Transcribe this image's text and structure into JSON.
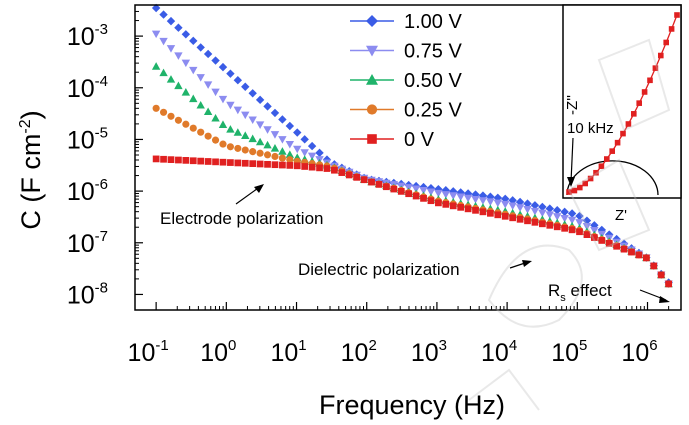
{
  "colors": {
    "v100": "#3a5ce6",
    "v075": "#8c8cf0",
    "v050": "#1fb36a",
    "v025": "#e07a2a",
    "v000": "#e02020",
    "inset_curve": "#e02020"
  },
  "chart_data": [
    {
      "type": "scatter",
      "xlabel": "Frequency (Hz)",
      "ylabel_main": "C (F cm",
      "ylabel_sup": "-2",
      "ylabel_end": ")",
      "x_scale": "log",
      "y_scale": "log",
      "xlim": [
        0.05,
        3000000
      ],
      "ylim": [
        5e-09,
        0.004
      ],
      "x_ticks": [
        {
          "v": 0.1,
          "base": "10",
          "exp": "-1"
        },
        {
          "v": 1,
          "base": "10",
          "exp": "0"
        },
        {
          "v": 10,
          "base": "10",
          "exp": "1"
        },
        {
          "v": 100,
          "base": "10",
          "exp": "2"
        },
        {
          "v": 1000,
          "base": "10",
          "exp": "3"
        },
        {
          "v": 10000,
          "base": "10",
          "exp": "4"
        },
        {
          "v": 100000,
          "base": "10",
          "exp": "5"
        },
        {
          "v": 1000000,
          "base": "10",
          "exp": "6"
        }
      ],
      "y_ticks": [
        {
          "v": 1e-08,
          "base": "10",
          "exp": "-8"
        },
        {
          "v": 1e-07,
          "base": "10",
          "exp": "-7"
        },
        {
          "v": 1e-06,
          "base": "10",
          "exp": "-6"
        },
        {
          "v": 1e-05,
          "base": "10",
          "exp": "-5"
        },
        {
          "v": 0.0001,
          "base": "10",
          "exp": "-4"
        },
        {
          "v": 0.001,
          "base": "10",
          "exp": "-3"
        }
      ],
      "legend_placement": "top-center",
      "series": [
        {
          "name": "1.00 V",
          "marker": "diamond",
          "color_key": "v100",
          "x": [
            0.1,
            1,
            10,
            30,
            100,
            1000,
            10000,
            100000,
            1000000,
            2000000
          ],
          "y": [
            0.0035,
            0.00022,
            1.4e-05,
            3.6e-06,
            1.7e-06,
            1.1e-06,
            7e-07,
            3.5e-07,
            5e-08,
            1.7e-08
          ]
        },
        {
          "name": "0.75 V",
          "marker": "triangle-down",
          "color_key": "v075",
          "x": [
            0.1,
            1,
            10,
            30,
            100,
            1000,
            10000,
            100000,
            1000000,
            2000000
          ],
          "y": [
            0.0011,
            5.2e-05,
            6.6e-06,
            3.3e-06,
            1.7e-06,
            9.2e-07,
            5.5e-07,
            2.6e-07,
            5e-08,
            1.6e-08
          ]
        },
        {
          "name": "0.50 V",
          "marker": "triangle-up",
          "color_key": "v050",
          "x": [
            0.1,
            1,
            10,
            30,
            100,
            1000,
            10000,
            100000,
            1000000,
            2000000
          ],
          "y": [
            0.00026,
            1.7e-05,
            4.5e-06,
            3.1e-06,
            1.6e-06,
            7e-07,
            4e-07,
            2e-07,
            5e-08,
            1.6e-08
          ]
        },
        {
          "name": "0.25 V",
          "marker": "circle",
          "color_key": "v025",
          "x": [
            0.1,
            1,
            10,
            30,
            100,
            1000,
            10000,
            100000,
            1000000,
            2000000
          ],
          "y": [
            4e-05,
            7.5e-06,
            3.8e-06,
            3e-06,
            1.6e-06,
            6.5e-07,
            3.5e-07,
            1.8e-07,
            5e-08,
            1.6e-08
          ]
        },
        {
          "name": "0 V",
          "marker": "square",
          "color_key": "v000",
          "x": [
            0.1,
            1,
            10,
            30,
            100,
            1000,
            10000,
            100000,
            1000000,
            2000000
          ],
          "y": [
            4.2e-06,
            3.6e-06,
            3.1e-06,
            2.7e-06,
            1.6e-06,
            6e-07,
            3.2e-07,
            1.7e-07,
            5e-08,
            1.6e-08
          ]
        }
      ],
      "annotations": {
        "electrode": "Electrode polarization",
        "dielectric": "Dielectric polarization",
        "rs_main": "R",
        "rs_sub": "s",
        "rs_end": " effect"
      }
    },
    {
      "type": "line",
      "role": "inset",
      "xlabel": "Z'",
      "ylabel": "-Z''",
      "annotation": "10 kHz"
    }
  ]
}
